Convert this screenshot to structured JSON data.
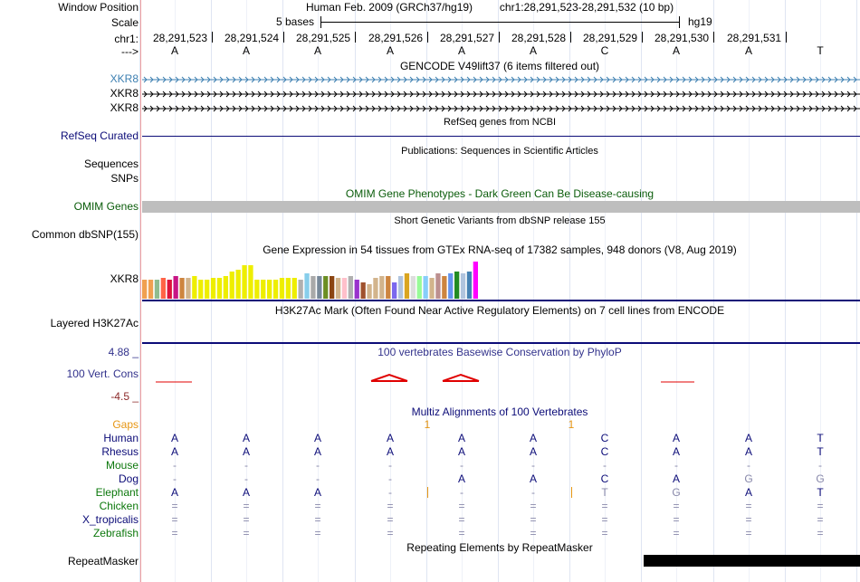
{
  "labels": {
    "window_position": "Window Position",
    "scale": "Scale",
    "chr": "chr1:",
    "strand": "--->",
    "gencode_tracks": [
      "XKR8",
      "XKR8",
      "XKR8"
    ],
    "refseq": "RefSeq Curated",
    "sequences": "Sequences",
    "snps": "SNPs",
    "omim": "OMIM Genes",
    "dbsnp": "Common dbSNP(155)",
    "gtex": "XKR8",
    "h3k27ac": "Layered H3K27Ac",
    "cons_max": "4.88 _",
    "cons": "100 Vert. Cons",
    "cons_min": "-4.5 _",
    "gaps": "Gaps",
    "species": [
      "Human",
      "Rhesus",
      "Mouse",
      "Dog",
      "Elephant",
      "Chicken",
      "X_tropicalis",
      "Zebrafish"
    ],
    "repeatmasker": "RepeatMasker"
  },
  "header": {
    "assembly": "Human Feb. 2009 (GRCh37/hg19)",
    "position": "chr1:28,291,523-28,291,532 (10 bp)",
    "scale_label": "5 bases",
    "db": "hg19"
  },
  "coordinates": [
    "28,291,523",
    "28,291,524",
    "28,291,525",
    "28,291,526",
    "28,291,527",
    "28,291,528",
    "28,291,529",
    "28,291,530",
    "28,291,531"
  ],
  "bases": [
    "A",
    "A",
    "A",
    "A",
    "A",
    "A",
    "C",
    "A",
    "A",
    "T"
  ],
  "track_titles": {
    "gencode": "GENCODE V49lift37 (6 items filtered out)",
    "refseq": "RefSeq genes from NCBI",
    "pubs": "Publications: Sequences in Scientific Articles",
    "omim": "OMIM Gene Phenotypes - Dark Green Can Be Disease-causing",
    "dbsnp": "Short Genetic Variants from dbSNP release 155",
    "gtex": "Gene Expression in 54 tissues from GTEx RNA-seq of 17382 samples, 948 donors (V8, Aug 2019)",
    "h3k27ac": "H3K27Ac Mark (Often Found Near Active Regulatory Elements) on 7 cell lines from ENCODE",
    "phylop": "100 vertebrates Basewise Conservation by PhyloP",
    "multiz": "Multiz Alignments of 100 Vertebrates",
    "repeats": "Repeating Elements by RepeatMasker"
  },
  "gaps_marks": [
    "1",
    "1"
  ],
  "alignment": [
    [
      "A",
      "A",
      "A",
      "A",
      "A",
      "A",
      "C",
      "A",
      "A",
      "T"
    ],
    [
      "A",
      "A",
      "A",
      "A",
      "A",
      "A",
      "C",
      "A",
      "A",
      "T"
    ],
    [
      "-",
      "-",
      "-",
      "-",
      "-",
      "-",
      "-",
      "-",
      "-",
      "-"
    ],
    [
      "-",
      "-",
      "-",
      "-",
      "A",
      "A",
      "C",
      "A",
      "G",
      "G"
    ],
    [
      "A",
      "A",
      "A",
      "-",
      "-",
      "-",
      "T",
      "G",
      "A",
      "T"
    ],
    [
      "=",
      "=",
      "=",
      "=",
      "=",
      "=",
      "=",
      "=",
      "=",
      "="
    ],
    [
      "=",
      "=",
      "=",
      "=",
      "=",
      "=",
      "=",
      "=",
      "=",
      "="
    ],
    [
      "=",
      "=",
      "=",
      "=",
      "=",
      "=",
      "=",
      "=",
      "=",
      "="
    ]
  ],
  "gtex_bar_colors": [
    "#f0a050",
    "#f0a050",
    "#8fbc8f",
    "#ff6347",
    "#dc143c",
    "#c71585",
    "#cd853f",
    "#d2b48c",
    "#eeee00",
    "#eeee00",
    "#eeee00",
    "#eeee00",
    "#eeee00",
    "#eeee00",
    "#eeee00",
    "#eeee00",
    "#eeee00",
    "#eeee00",
    "#eeee00",
    "#eeee00",
    "#eeee00",
    "#eeee00",
    "#eeee00",
    "#eeee00",
    "#eeee00",
    "#b0b0b0",
    "#87ceeb",
    "#a9a9a9",
    "#778899",
    "#6b8e23",
    "#8b4513",
    "#d2b48c",
    "#ffc0cb",
    "#b0b0b0",
    "#9932cc",
    "#a0522d",
    "#d2b48c",
    "#d2b48c",
    "#d2b48c",
    "#cd853f",
    "#7b68ee",
    "#b0c4de",
    "#daa520",
    "#ddd",
    "#98fb98",
    "#87cefa",
    "#d2b48c",
    "#bc8f8f",
    "#cd853f",
    "#6495ed",
    "#228b22",
    "#b0c4de",
    "#4682b4",
    "#ff00ff"
  ],
  "gtex_values": [
    0.45,
    0.45,
    0.45,
    0.5,
    0.45,
    0.55,
    0.5,
    0.5,
    0.55,
    0.45,
    0.45,
    0.5,
    0.5,
    0.55,
    0.65,
    0.7,
    0.8,
    0.8,
    0.45,
    0.45,
    0.45,
    0.45,
    0.5,
    0.5,
    0.5,
    0.45,
    0.6,
    0.55,
    0.55,
    0.55,
    0.55,
    0.5,
    0.5,
    0.55,
    0.45,
    0.4,
    0.35,
    0.5,
    0.55,
    0.55,
    0.4,
    0.55,
    0.6,
    0.55,
    0.55,
    0.55,
    0.5,
    0.6,
    0.55,
    0.6,
    0.65,
    0.6,
    0.65,
    0.9
  ],
  "colors": {
    "gencode_blue": "#3c7fb1",
    "gencode_black": "#000000",
    "refseq": "#0c0c78",
    "omim_text": "#0a5c0a",
    "omim_bar": "#bebebe",
    "cons_title": "#33338c",
    "cons_max": "#32328c",
    "cons_min": "#8c2a2a",
    "phylop_red": "#e00000",
    "gaps": "#e69614",
    "species": [
      "#0c0c78",
      "#0c0c78",
      "#0c780c",
      "#0c0c78",
      "#0c780c",
      "#0c780c",
      "#0c0c78",
      "#0c780c"
    ],
    "repeat_bar": "#000000"
  }
}
